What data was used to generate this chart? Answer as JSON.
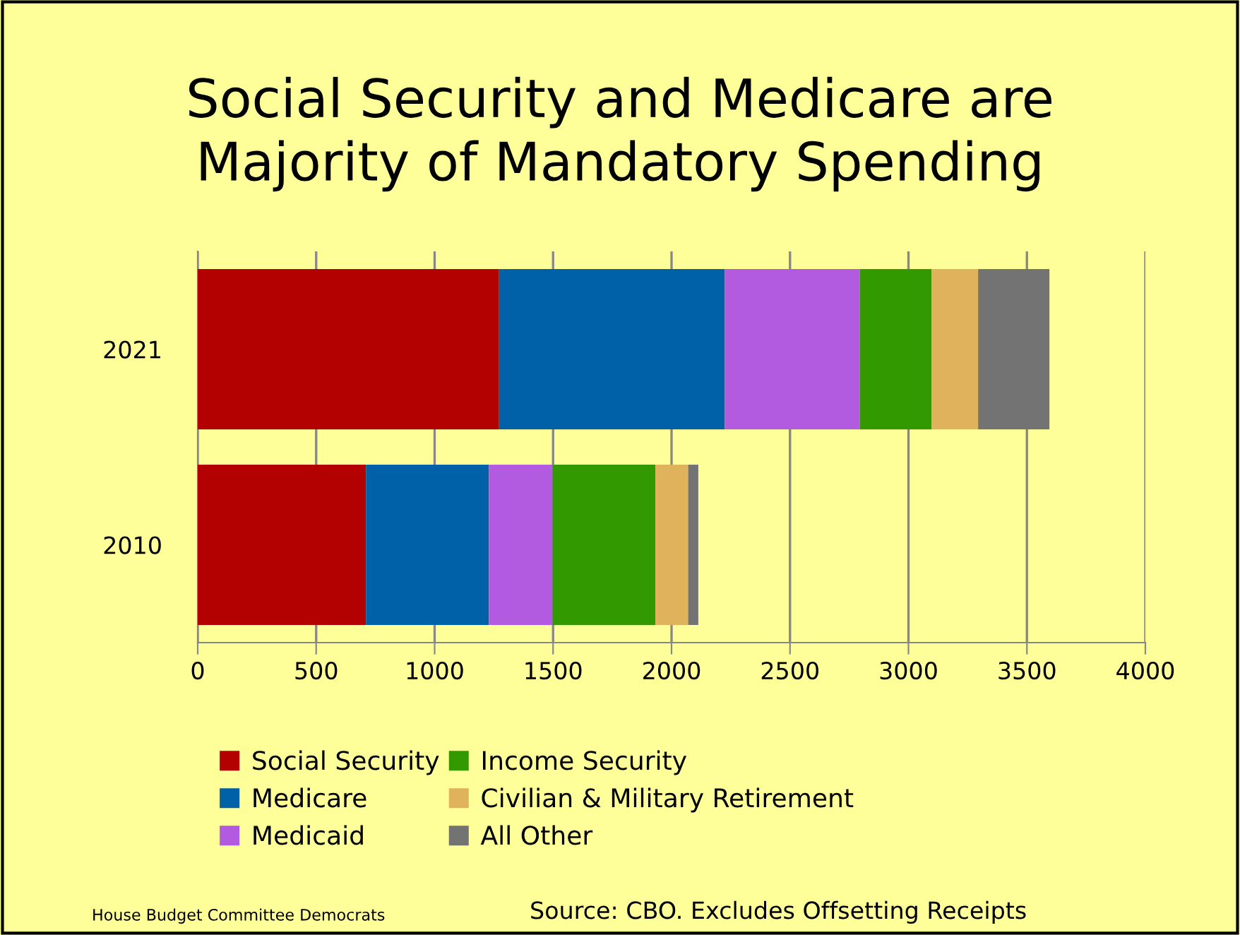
{
  "chart_data": {
    "type": "bar",
    "orientation": "horizontal",
    "stacked": true,
    "title": "Social Security and Medicare are\nMajority of Mandatory Spending",
    "categories": [
      "2021",
      "2010"
    ],
    "series": [
      {
        "name": "Social Security",
        "color": "#b30000",
        "values": [
          1272,
          710
        ]
      },
      {
        "name": "Medicare",
        "color": "#0061a8",
        "values": [
          953,
          519
        ]
      },
      {
        "name": "Medicaid",
        "color": "#b25be0",
        "values": [
          569,
          269
        ]
      },
      {
        "name": "Income Security",
        "color": "#339900",
        "values": [
          303,
          434
        ]
      },
      {
        "name": "Civilian & Military Retirement",
        "color": "#e0b25b",
        "values": [
          197,
          138
        ]
      },
      {
        "name": "All Other",
        "color": "#737373",
        "values": [
          301,
          43
        ]
      }
    ],
    "xlim": [
      0,
      4000
    ],
    "xticks": [
      0,
      500,
      1000,
      1500,
      2000,
      2500,
      3000,
      3500,
      4000
    ],
    "grid": "x",
    "legend": "bottom",
    "annotations": [
      "House Budget Committee Democrats",
      "Source: CBO. Excludes Offsetting Receipts"
    ]
  }
}
